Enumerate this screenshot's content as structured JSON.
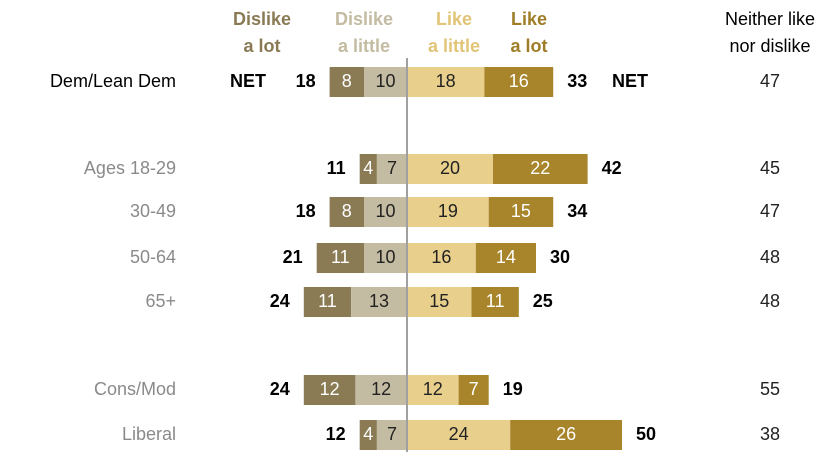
{
  "chart_data": {
    "type": "bar",
    "subtype": "diverging-stacked",
    "headers": {
      "dislike_a_lot": [
        "Dislike",
        "a lot"
      ],
      "dislike_a_little": [
        "Dislike",
        "a little"
      ],
      "like_a_little": [
        "Like",
        "a little"
      ],
      "like_a_lot": [
        "Like",
        "a lot"
      ],
      "neither": [
        "Neither like",
        "nor dislike"
      ]
    },
    "net_label": "NET",
    "colors": {
      "dislike_a_lot": "#8a7b55",
      "dislike_a_little": "#c3bca2",
      "like_a_little": "#e8cf8c",
      "like_a_lot": "#a8842a",
      "dislike_a_lot_header": "#8a7b55",
      "dislike_a_little_header": "#c3bca2",
      "like_a_little_header": "#e1c476",
      "like_a_lot_header": "#9e7d26",
      "baseline": "#a0a0a0"
    },
    "rows": [
      {
        "label": "Dem/Lean Dem",
        "dislike_a_lot": 8,
        "dislike_a_little": 10,
        "like_a_little": 18,
        "like_a_lot": 16,
        "dislike_net": 18,
        "like_net": 33,
        "neither": 47,
        "show_net": true
      },
      {
        "label": "Ages 18-29",
        "dislike_a_lot": 4,
        "dislike_a_little": 7,
        "like_a_little": 20,
        "like_a_lot": 22,
        "dislike_net": 11,
        "like_net": 42,
        "neither": 45
      },
      {
        "label": "30-49",
        "dislike_a_lot": 8,
        "dislike_a_little": 10,
        "like_a_little": 19,
        "like_a_lot": 15,
        "dislike_net": 18,
        "like_net": 34,
        "neither": 47
      },
      {
        "label": "50-64",
        "dislike_a_lot": 11,
        "dislike_a_little": 10,
        "like_a_little": 16,
        "like_a_lot": 14,
        "dislike_net": 21,
        "like_net": 30,
        "neither": 48
      },
      {
        "label": "65+",
        "dislike_a_lot": 11,
        "dislike_a_little": 13,
        "like_a_little": 15,
        "like_a_lot": 11,
        "dislike_net": 24,
        "like_net": 25,
        "neither": 48
      },
      {
        "label": "Cons/Mod",
        "dislike_a_lot": 12,
        "dislike_a_little": 12,
        "like_a_little": 12,
        "like_a_lot": 7,
        "dislike_net": 24,
        "like_net": 19,
        "neither": 55
      },
      {
        "label": "Liberal",
        "dislike_a_lot": 4,
        "dislike_a_little": 7,
        "like_a_little": 24,
        "like_a_lot": 26,
        "dislike_net": 12,
        "like_net": 50,
        "neither": 38
      }
    ]
  }
}
